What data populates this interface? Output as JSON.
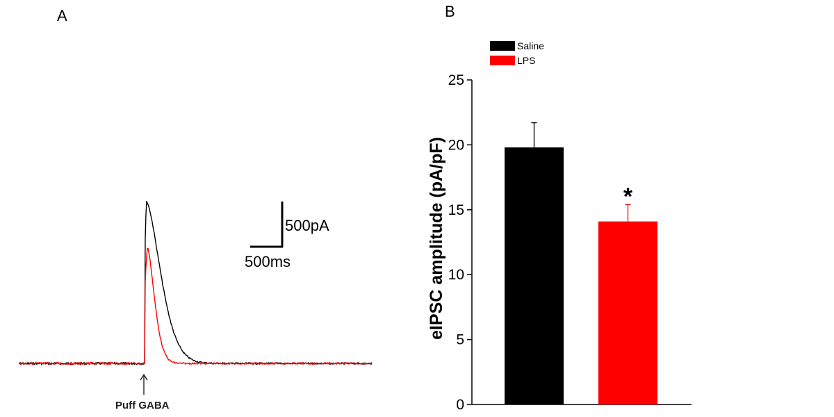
{
  "chart_data": [
    {
      "panel": "A",
      "type": "line",
      "title": "",
      "series": [
        {
          "name": "Saline",
          "color": "#000000",
          "baseline_pA": 0,
          "peak_pA": 1765,
          "onset_ms": 0,
          "time_to_peak_ms": 30,
          "decay_to_baseline_ms": 1000
        },
        {
          "name": "LPS",
          "color": "#ff0000",
          "baseline_pA": 0,
          "peak_pA": 1265,
          "onset_ms": 0,
          "time_to_peak_ms": 45,
          "decay_to_baseline_ms": 500
        }
      ],
      "scale_bar": {
        "current_label": "500pA",
        "time_label": "500ms"
      },
      "annotation": {
        "label": "Puff GABA",
        "marker": "up-arrow-icon"
      }
    },
    {
      "panel": "B",
      "type": "bar",
      "categories": [
        "Saline",
        "LPS"
      ],
      "values": [
        19.8,
        14.1
      ],
      "errors": [
        1.9,
        1.3
      ],
      "colors": [
        "#000000",
        "#ff0000"
      ],
      "significance": [
        "",
        "*"
      ],
      "ylabel": "eIPSC amplitude (pA/pF)",
      "xlabel": "",
      "ylim": [
        0,
        25
      ],
      "yticks": [
        0,
        5,
        10,
        15,
        20,
        25
      ],
      "legend": {
        "position": "top-left",
        "entries": [
          {
            "label": "Saline",
            "color": "#000000"
          },
          {
            "label": "LPS",
            "color": "#ff0000"
          }
        ]
      }
    }
  ]
}
